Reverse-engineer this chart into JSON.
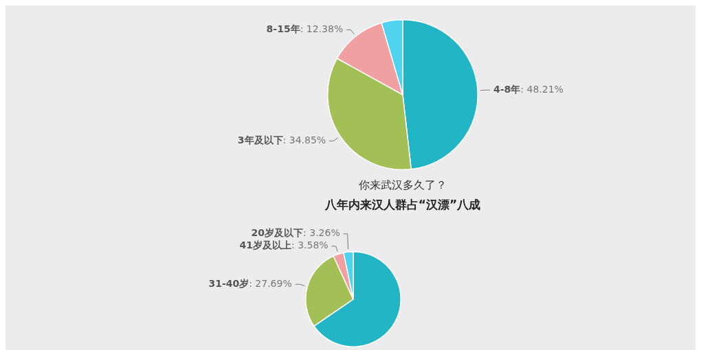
{
  "chart_data": [
    {
      "type": "pie",
      "title": "你来武汉多久了？",
      "subtitle": "八年内来汉人群占“汉漂”八成",
      "categories": [
        "4-8年",
        "3年及以下",
        "8-15年",
        null
      ],
      "values": [
        48.21,
        34.85,
        12.38,
        4.56
      ],
      "value_labels": [
        ": 48.21%",
        ": 34.85%",
        ": 12.38%",
        null
      ],
      "colors": [
        "#22b5c5",
        "#a3c057",
        "#f0a0a0",
        "#4fd3ef"
      ]
    },
    {
      "type": "pie",
      "categories": [
        null,
        "31-40岁",
        "41岁及以上",
        "20岁及以下"
      ],
      "values": [
        65.47,
        27.69,
        3.58,
        3.26
      ],
      "value_labels": [
        null,
        ": 27.69%",
        ": 3.58%",
        ": 3.26%"
      ],
      "colors": [
        "#22b5c5",
        "#a3c057",
        "#f0a0a0",
        "#4fd3ef"
      ]
    }
  ]
}
